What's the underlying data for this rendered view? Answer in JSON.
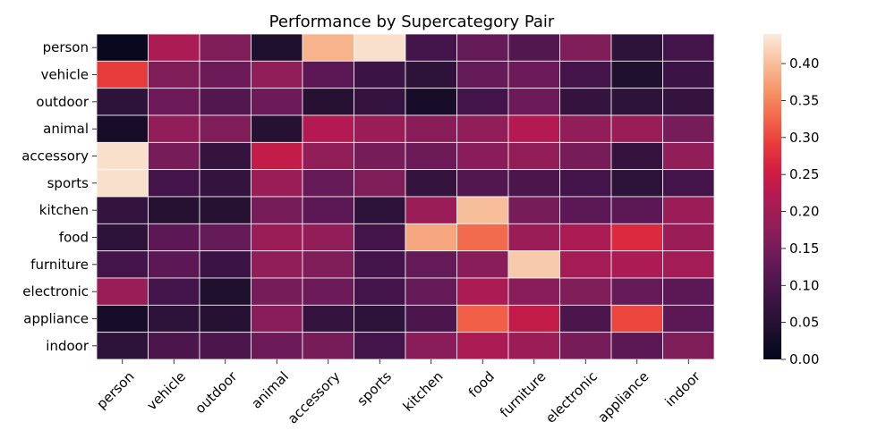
{
  "chart_data": {
    "type": "heatmap",
    "title": "Performance by Supercategory Pair",
    "xlabel": "",
    "ylabel": "",
    "rows": [
      "person",
      "vehicle",
      "outdoor",
      "animal",
      "accessory",
      "sports",
      "kitchen",
      "food",
      "furniture",
      "electronic",
      "appliance",
      "indoor"
    ],
    "columns": [
      "person",
      "vehicle",
      "outdoor",
      "animal",
      "accessory",
      "sports",
      "kitchen",
      "food",
      "furniture",
      "electronic",
      "appliance",
      "indoor"
    ],
    "values": [
      [
        0.01,
        0.21,
        0.16,
        0.04,
        0.39,
        0.43,
        0.09,
        0.13,
        0.11,
        0.16,
        0.06,
        0.09
      ],
      [
        0.29,
        0.16,
        0.14,
        0.18,
        0.12,
        0.08,
        0.06,
        0.13,
        0.14,
        0.09,
        0.04,
        0.08
      ],
      [
        0.06,
        0.14,
        0.11,
        0.14,
        0.05,
        0.07,
        0.03,
        0.09,
        0.14,
        0.07,
        0.06,
        0.07
      ],
      [
        0.03,
        0.18,
        0.16,
        0.05,
        0.22,
        0.19,
        0.17,
        0.18,
        0.22,
        0.18,
        0.19,
        0.15
      ],
      [
        0.43,
        0.15,
        0.07,
        0.24,
        0.18,
        0.15,
        0.14,
        0.17,
        0.18,
        0.15,
        0.07,
        0.18
      ],
      [
        0.43,
        0.09,
        0.07,
        0.19,
        0.13,
        0.16,
        0.07,
        0.11,
        0.1,
        0.09,
        0.06,
        0.09
      ],
      [
        0.07,
        0.05,
        0.05,
        0.15,
        0.12,
        0.06,
        0.19,
        0.4,
        0.15,
        0.12,
        0.12,
        0.19
      ],
      [
        0.06,
        0.12,
        0.13,
        0.19,
        0.18,
        0.09,
        0.38,
        0.33,
        0.19,
        0.21,
        0.27,
        0.19
      ],
      [
        0.09,
        0.12,
        0.08,
        0.18,
        0.16,
        0.09,
        0.13,
        0.17,
        0.41,
        0.2,
        0.21,
        0.2
      ],
      [
        0.19,
        0.09,
        0.04,
        0.15,
        0.14,
        0.09,
        0.13,
        0.21,
        0.17,
        0.16,
        0.13,
        0.12
      ],
      [
        0.03,
        0.06,
        0.05,
        0.17,
        0.07,
        0.06,
        0.1,
        0.32,
        0.24,
        0.1,
        0.3,
        0.12
      ],
      [
        0.06,
        0.1,
        0.1,
        0.14,
        0.15,
        0.09,
        0.17,
        0.21,
        0.19,
        0.15,
        0.12,
        0.16
      ]
    ],
    "colorbar": {
      "min": 0.0,
      "max": 0.44,
      "ticks": [
        "0.00",
        "0.05",
        "0.10",
        "0.15",
        "0.20",
        "0.25",
        "0.30",
        "0.35",
        "0.40"
      ],
      "colormap": "rocket"
    },
    "grid": false,
    "cell_border_color": "#ffffff"
  }
}
